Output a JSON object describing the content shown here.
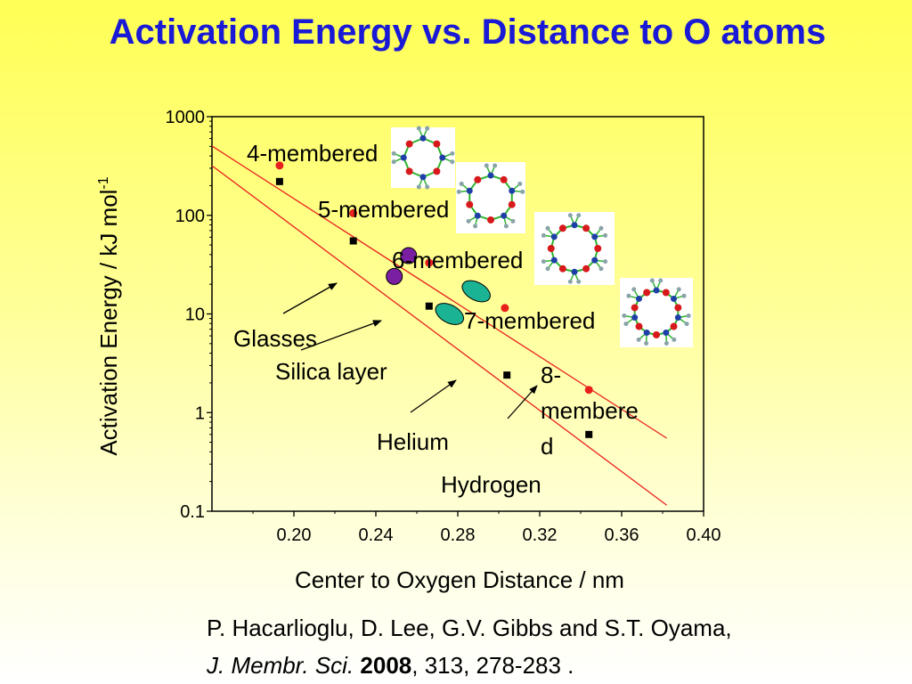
{
  "title": "Activation Energy vs. Distance to O atoms",
  "citation": {
    "line1": "P. Hacarlioglu, D. Lee, G.V. Gibbs and S.T. Oyama,",
    "journal": "J. Membr. Sci.",
    "year": "2008",
    "rest": ", 313, 278-283 ."
  },
  "chart_data": {
    "type": "scatter",
    "title": "",
    "xlabel": "Center to Oxygen Distance / nm",
    "ylabel": "Activation Energy / kJ mol",
    "ylabel_sup": "-1",
    "xlim": [
      0.16,
      0.4
    ],
    "ylim": [
      0.1,
      1000
    ],
    "yscale": "log",
    "xticks": [
      "0.20",
      "0.24",
      "0.28",
      "0.32",
      "0.36",
      "0.40"
    ],
    "yticks": [
      "0.1",
      "1",
      "10",
      "100",
      "1000"
    ],
    "series": [
      {
        "color": "#e8201c",
        "marker": "circle",
        "x": [
          0.193,
          0.229,
          0.266,
          0.303,
          0.344
        ],
        "y": [
          320,
          105,
          33,
          11.5,
          1.7
        ]
      },
      {
        "color": "#000000",
        "marker": "square",
        "x": [
          0.193,
          0.229,
          0.266,
          0.304,
          0.344
        ],
        "y": [
          220,
          55,
          12,
          2.4,
          0.6
        ]
      }
    ],
    "fit_lines": [
      {
        "color": "#e8201c",
        "x": [
          0.159,
          0.382
        ],
        "y": [
          520,
          0.55
        ]
      },
      {
        "color": "#e8201c",
        "x": [
          0.159,
          0.382
        ],
        "y": [
          330,
          0.115
        ]
      }
    ],
    "glasses_points": [
      {
        "x": 0.256,
        "y": 39
      },
      {
        "x": 0.249,
        "y": 24
      }
    ],
    "silica_points": [
      {
        "x": 0.289,
        "y": 17
      },
      {
        "x": 0.276,
        "y": 10
      }
    ],
    "ring_labels": [
      "4-membered",
      "5-membered",
      "6-membered",
      "7-membered",
      "8-membered"
    ],
    "ring_label_8": [
      "8-",
      "membere",
      "d"
    ],
    "annotations": {
      "glasses": "Glasses",
      "silica": "Silica layer",
      "helium": "Helium",
      "hydrogen": "Hydrogen"
    },
    "grid": false,
    "legend": "none"
  }
}
